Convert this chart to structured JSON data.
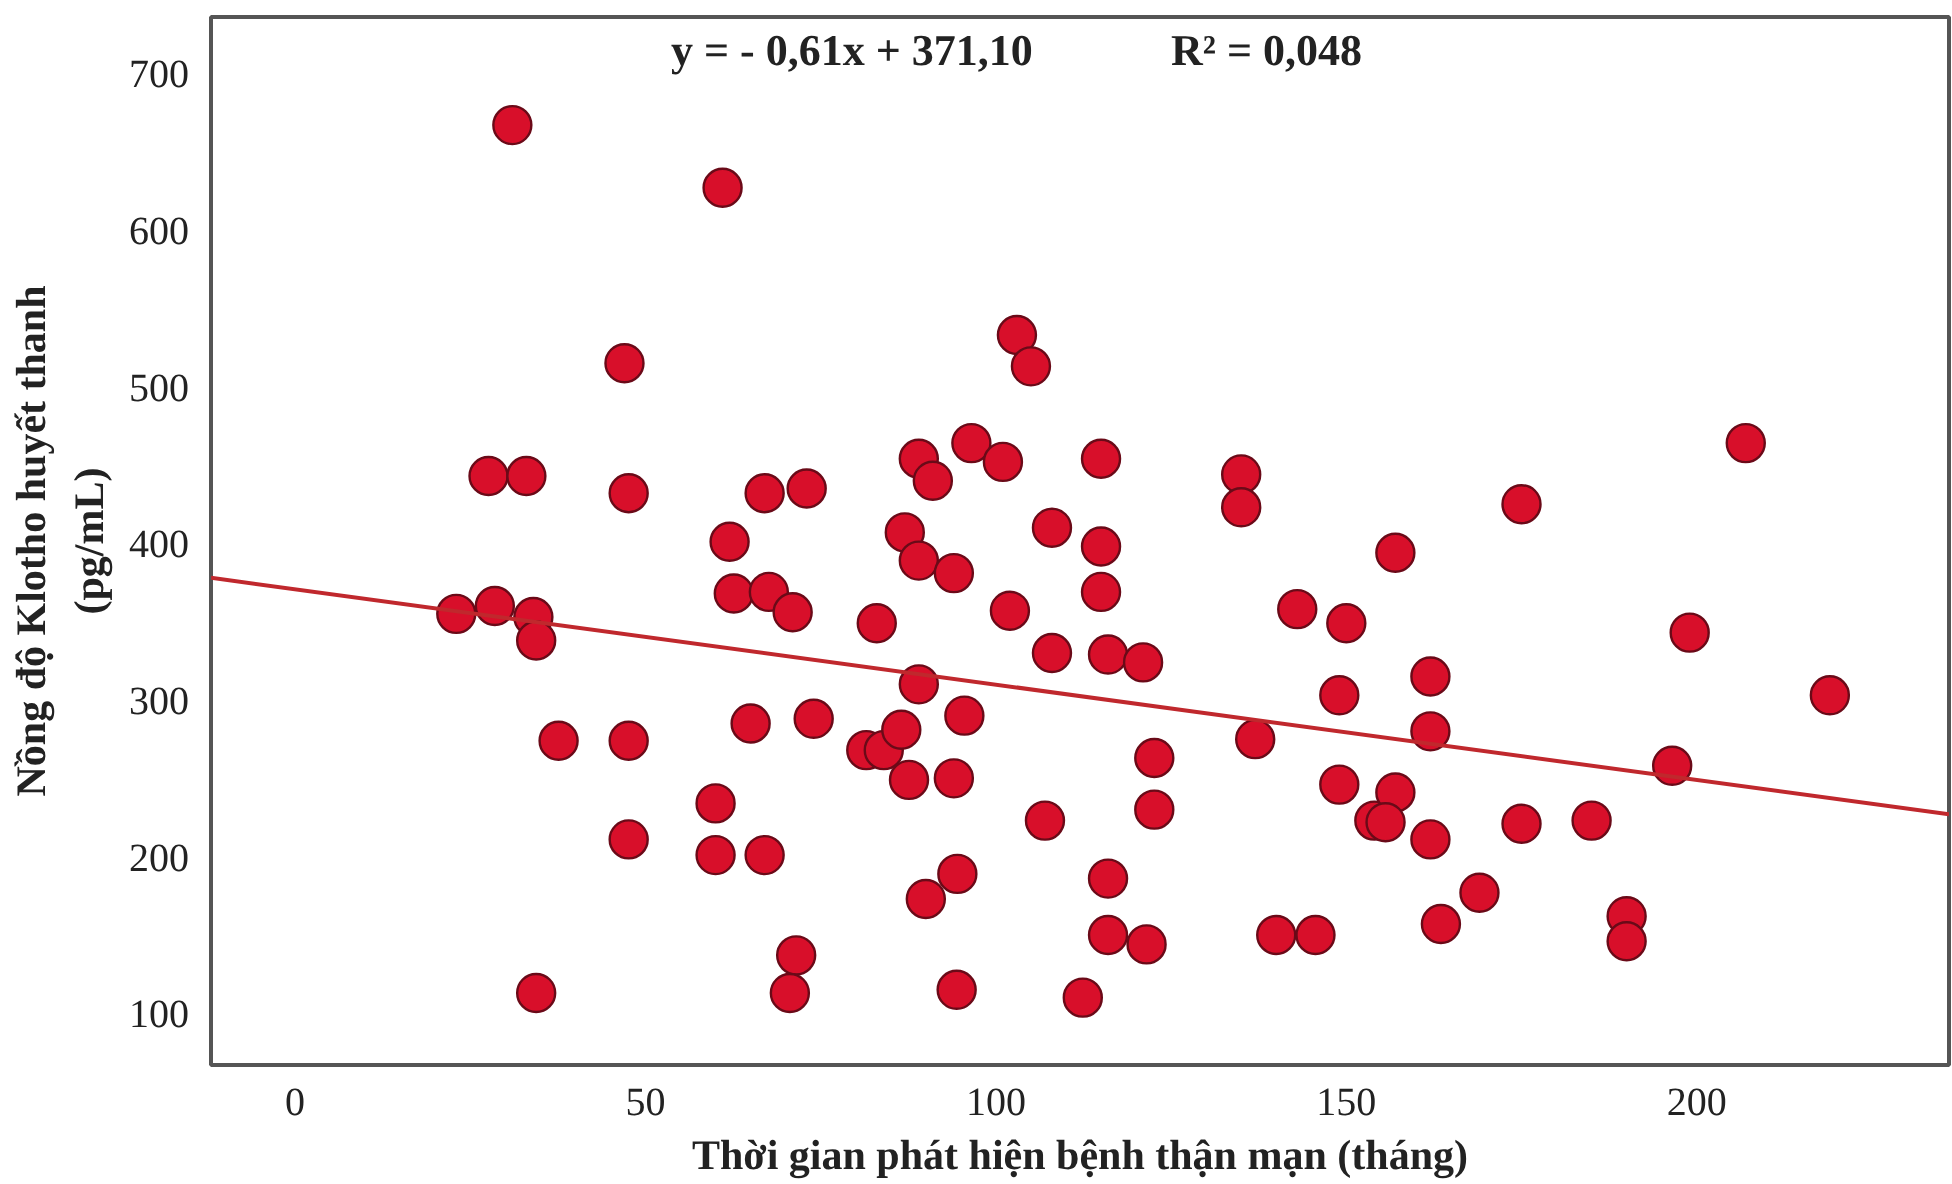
{
  "chart_data": {
    "type": "scatter",
    "xlabel": "Thời gian phát hiện bệnh thận mạn (tháng)",
    "ylabel": "Nồng độ Klotho huyết thanh\n(pg/mL)",
    "annotations": [
      "y = - 0,61x + 371,10",
      "R² = 0,048"
    ],
    "xlim": [
      -12,
      236
    ],
    "ylim": [
      67,
      736
    ],
    "xticks": [
      0,
      50,
      100,
      150,
      200
    ],
    "yticks": [
      100,
      200,
      300,
      400,
      500,
      600,
      700
    ],
    "grid": false,
    "marker": "circle",
    "series": [
      {
        "color": "#d80f2a",
        "x": [
          23,
          28.5,
          31,
          27.6,
          33,
          34,
          34.4,
          37.6,
          34.4,
          47,
          47.6,
          47.6,
          47.6,
          61,
          62,
          62.6,
          60,
          60,
          65,
          67.6,
          67,
          71,
          73,
          67,
          71.5,
          70.6,
          74,
          81.5,
          84,
          83,
          86.5,
          87.6,
          89,
          91,
          96.5,
          101,
          115,
          135,
          135,
          87,
          89,
          94,
          108,
          115,
          115,
          102,
          108,
          116,
          121,
          143,
          150,
          149,
          89,
          95.5,
          94,
          107,
          122.6,
          122.6,
          137,
          149,
          154,
          94.5,
          90,
          116,
          116,
          121.5,
          140,
          145.6,
          94.4,
          112.4,
          103,
          105,
          207,
          175,
          157,
          199,
          219,
          162,
          162,
          157,
          155.6,
          162,
          175,
          185,
          196.5,
          169,
          163.5,
          190,
          190
        ],
        "values": [
          355,
          360,
          667,
          443,
          443,
          353,
          338,
          274,
          113,
          515,
          432,
          274,
          211,
          627,
          401,
          368,
          234,
          201,
          285,
          369,
          432,
          356,
          435,
          201,
          137,
          113,
          288,
          268,
          268,
          349,
          281,
          249,
          454,
          440,
          464,
          452,
          454,
          444,
          423,
          407,
          389,
          381,
          410,
          398,
          369,
          357,
          330,
          329,
          324,
          358,
          349,
          303,
          310,
          290,
          250,
          223,
          263,
          230,
          275,
          246,
          223,
          189,
          173,
          186,
          150,
          144,
          150,
          150,
          115,
          110,
          533,
          513,
          464,
          425,
          394,
          343,
          303,
          315,
          280,
          241,
          222,
          211,
          221,
          223,
          258,
          177,
          157,
          162,
          146
        ]
      },
      {
        "type": "line",
        "color": "#c0282d",
        "x": [
          -12,
          236
        ],
        "values": [
          378,
          227
        ],
        "line_style": "solid",
        "marker": "none"
      }
    ]
  }
}
